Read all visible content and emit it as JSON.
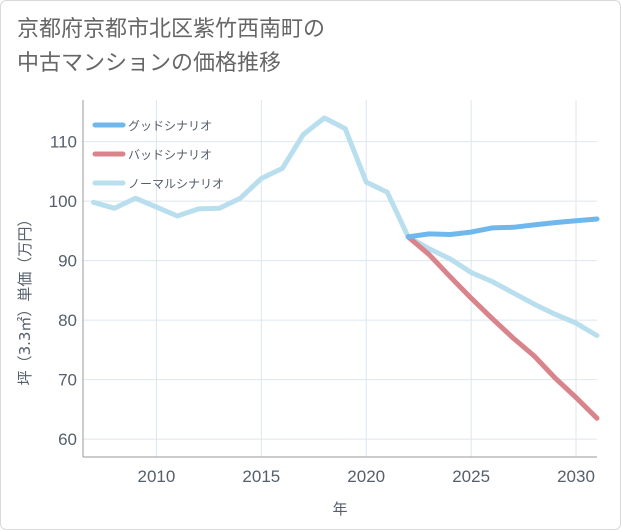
{
  "title_line1": "京都府京都市北区紫竹西南町の",
  "title_line2": "中古マンションの価格推移",
  "chart_data": {
    "type": "line",
    "xlabel": "年",
    "ylabel": "坪（3.3㎡）単価（万円）",
    "xlim": [
      2006.5,
      2031
    ],
    "ylim": [
      57,
      117
    ],
    "xticks": [
      2010,
      2015,
      2020,
      2025,
      2030
    ],
    "yticks": [
      60,
      70,
      80,
      90,
      100,
      110
    ],
    "grid": true,
    "legend_position": "top-left",
    "series": [
      {
        "name": "グッドシナリオ",
        "color": "#6fb8ee",
        "x": [
          2022,
          2023,
          2024,
          2025,
          2026,
          2027,
          2028,
          2029,
          2030,
          2031
        ],
        "values": [
          94.0,
          94.5,
          94.4,
          94.8,
          95.5,
          95.6,
          96.0,
          96.4,
          96.7,
          97.0
        ]
      },
      {
        "name": "バッドシナリオ",
        "color": "#d9848b",
        "x": [
          2022,
          2023,
          2024,
          2025,
          2026,
          2027,
          2028,
          2029,
          2030,
          2031
        ],
        "values": [
          94.0,
          91.0,
          87.3,
          83.7,
          80.3,
          77.0,
          74.0,
          70.3,
          67.0,
          63.5
        ]
      },
      {
        "name": "ノーマルシナリオ",
        "color": "#b9dfee",
        "x": [
          2007,
          2008,
          2009,
          2010,
          2011,
          2012,
          2013,
          2014,
          2015,
          2016,
          2017,
          2018,
          2019,
          2020,
          2021,
          2022,
          2023,
          2024,
          2025,
          2026,
          2027,
          2028,
          2029,
          2030,
          2031
        ],
        "values": [
          99.8,
          98.8,
          100.5,
          99.0,
          97.5,
          98.7,
          98.8,
          100.5,
          103.8,
          105.5,
          111.2,
          114.0,
          112.2,
          103.2,
          101.5,
          94.0,
          92.0,
          90.3,
          88.0,
          86.5,
          84.6,
          82.7,
          81.0,
          79.5,
          77.4
        ]
      }
    ]
  }
}
